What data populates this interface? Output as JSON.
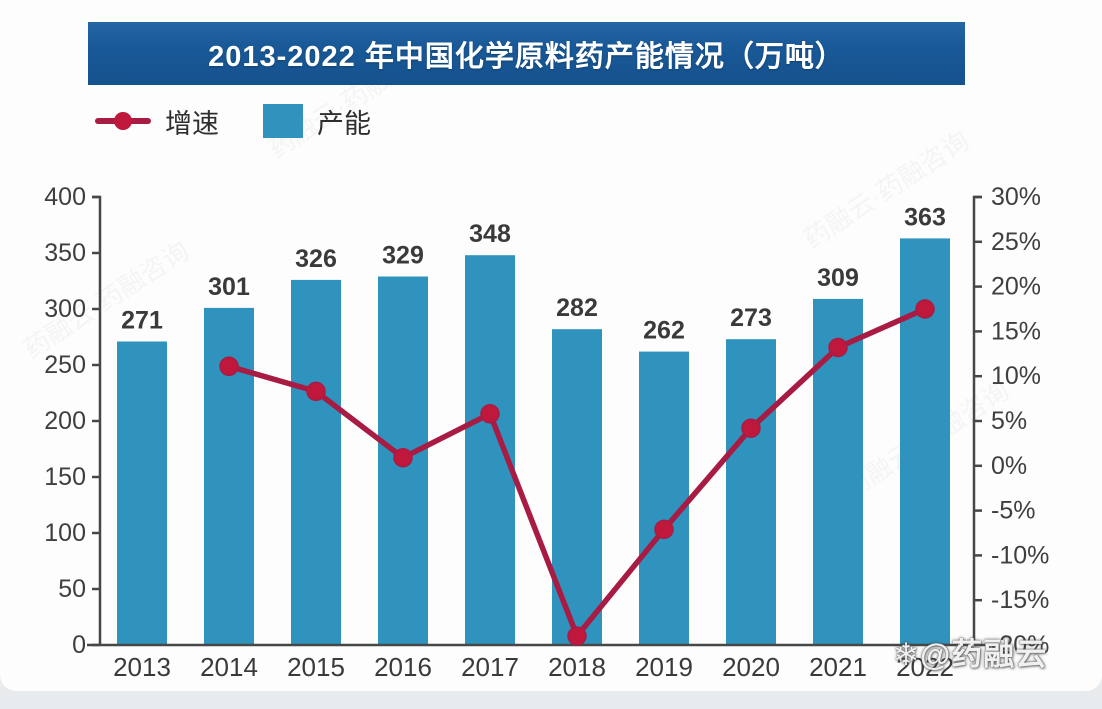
{
  "title": "2013-2022 年中国化学原料药产能情况（万吨）",
  "legend": {
    "growth_label": "增速",
    "capacity_label": "产能"
  },
  "watermarks": {
    "diagonal": "药融云·药融咨询",
    "corner": "❄@药融云"
  },
  "colors": {
    "bar": "#2f93bd",
    "line": "#a81c44",
    "marker": "#c0183c",
    "banner": "#1a5a99",
    "axis": "#474747",
    "text": "#3a3a3a"
  },
  "chart_data": {
    "type": "bar",
    "title": "2013-2022 年中国化学原料药产能情况（万吨）",
    "categories": [
      "2013",
      "2014",
      "2015",
      "2016",
      "2017",
      "2018",
      "2019",
      "2020",
      "2021",
      "2022"
    ],
    "series": [
      {
        "name": "产能",
        "type": "bar",
        "axis": "left",
        "color": "#2f93bd",
        "values": [
          271,
          301,
          326,
          329,
          348,
          282,
          262,
          273,
          309,
          363
        ]
      },
      {
        "name": "增速",
        "type": "line",
        "axis": "right",
        "color": "#a81c44",
        "marker_color": "#c0183c",
        "values": [
          null,
          11.1,
          8.3,
          0.9,
          5.8,
          -19.0,
          -7.1,
          4.2,
          13.2,
          17.5
        ]
      }
    ],
    "left_axis": {
      "min": 0,
      "max": 400,
      "step": 50,
      "tick_labels": [
        "0",
        "50",
        "100",
        "150",
        "200",
        "250",
        "300",
        "350",
        "400"
      ]
    },
    "right_axis": {
      "min": -20,
      "max": 30,
      "step": 5,
      "tick_labels": [
        "-20%",
        "-15%",
        "-10%",
        "-5%",
        "0%",
        "5%",
        "10%",
        "15%",
        "20%",
        "25%",
        "30%"
      ]
    },
    "grid": false,
    "legend_position": "top-left"
  }
}
